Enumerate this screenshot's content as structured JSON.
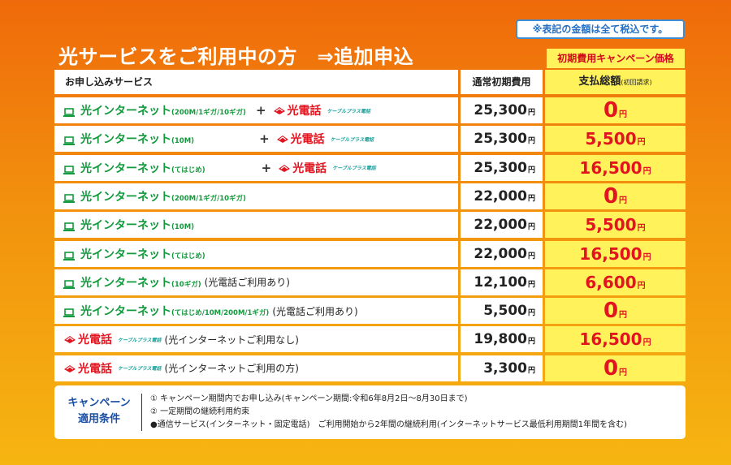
{
  "tax_note": "※表記の金額は全て税込です。",
  "title": "光サービスをご利用中の方　⇒追加申込",
  "campaign_label": "初期費用キャンペーン価格",
  "header": {
    "service": "お申し込みサービス",
    "normal_fee": "通常初期費用",
    "total": "支払総額",
    "total_note": "(初回請求)"
  },
  "labels": {
    "internet": "光インターネット",
    "tel": "光電話",
    "cable_plus": "ケーブルプラス電話",
    "plus": "+",
    "yen": "円"
  },
  "rows": [
    {
      "speed": "(200M/1ギガ/10ギガ)",
      "tel": true,
      "note": "",
      "normal": "25,300",
      "pay": "0"
    },
    {
      "speed": "(10M)",
      "tel": true,
      "note": "",
      "normal": "25,300",
      "pay": "5,500"
    },
    {
      "speed": "(てはじめ)",
      "tel": true,
      "note": "",
      "normal": "25,300",
      "pay": "16,500"
    },
    {
      "speed": "(200M/1ギガ/10ギガ)",
      "tel": false,
      "note": "",
      "normal": "22,000",
      "pay": "0"
    },
    {
      "speed": "(10M)",
      "tel": false,
      "note": "",
      "normal": "22,000",
      "pay": "5,500"
    },
    {
      "speed": "(てはじめ)",
      "tel": false,
      "note": "",
      "normal": "22,000",
      "pay": "16,500"
    },
    {
      "speed": "(10ギガ)",
      "tel": false,
      "note": "(光電話ご利用あり)",
      "normal": "12,100",
      "pay": "6,600"
    },
    {
      "speed": "(てはじめ/10M/200M/1ギガ)",
      "tel": false,
      "note": "(光電話ご利用あり)",
      "normal": "5,500",
      "pay": "0"
    },
    {
      "telonly": true,
      "note": "(光インターネットご利用なし)",
      "normal": "19,800",
      "pay": "16,500"
    },
    {
      "telonly": true,
      "note": "(光インターネットご利用の方)",
      "normal": "3,300",
      "pay": "0"
    }
  ],
  "conditions": {
    "title_line1": "キャンペーン",
    "title_line2": "適用条件",
    "lines": [
      "① キャンペーン期間内でお申し込み(キャンペーン期間:令和6年8月2日〜8月30日まで)",
      "② 一定期間の継続利用約束",
      "●通信サービス(インターネット・固定電話)　ご利用開始から2年間の継続利用(インターネットサービス最低利用期間1年間を含む)"
    ]
  },
  "colors": {
    "green": "#139a3d",
    "red": "#e1141f",
    "yellow": "#fff25a",
    "blue": "#1a4fa4"
  }
}
